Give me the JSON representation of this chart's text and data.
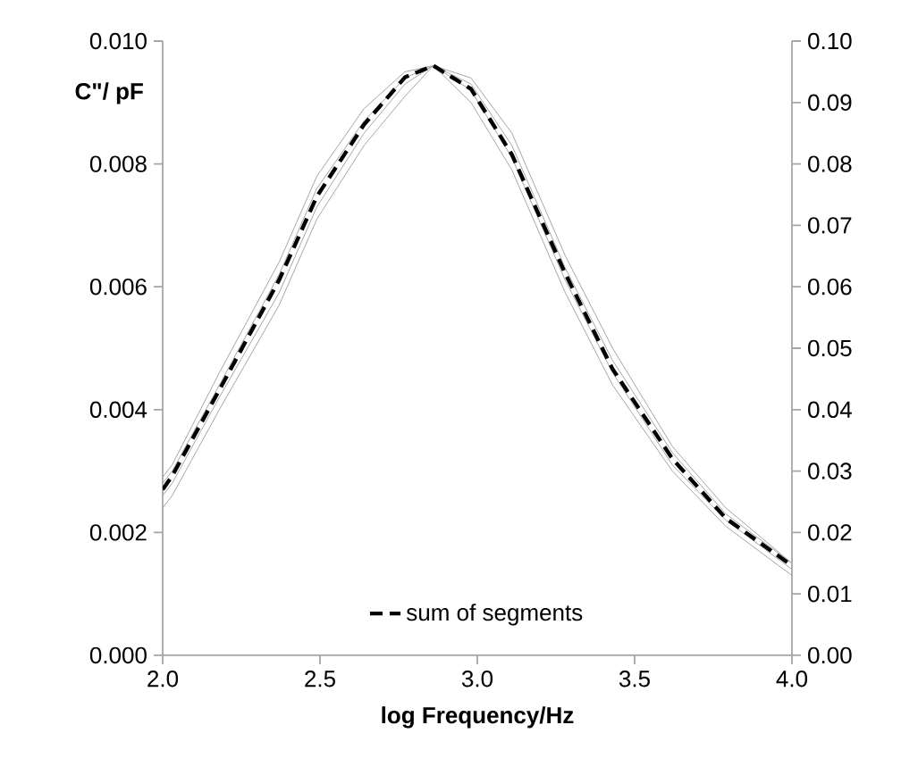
{
  "chart_data": {
    "type": "line",
    "xlabel": "log Frequency/Hz",
    "ylabel": "C\"/ pF",
    "x": [
      2.0,
      2.03,
      2.18,
      2.37,
      2.49,
      2.64,
      2.77,
      2.86,
      2.98,
      3.11,
      3.28,
      3.43,
      3.62,
      3.79,
      4.0
    ],
    "series": [
      {
        "color": "#a6a6a6",
        "values": [
          0.0029,
          0.0031,
          0.0046,
          0.0064,
          0.0078,
          0.0089,
          0.0095,
          0.0096,
          0.009,
          0.0079,
          0.0059,
          0.0044,
          0.003,
          0.0021,
          0.0013
        ]
      },
      {
        "color": "#a6a6a6",
        "values": [
          0.0028,
          0.003,
          0.0044,
          0.0062,
          0.0076,
          0.0087,
          0.0094,
          0.0096,
          0.0092,
          0.0081,
          0.0061,
          0.0046,
          0.0031,
          0.0022,
          0.0014
        ]
      },
      {
        "color": "#a6a6a6",
        "values": [
          0.0026,
          0.0028,
          0.0042,
          0.0059,
          0.0073,
          0.0085,
          0.0093,
          0.0096,
          0.0093,
          0.0083,
          0.0063,
          0.0048,
          0.0033,
          0.0023,
          0.0015
        ]
      },
      {
        "color": "#a6a6a6",
        "values": [
          0.0024,
          0.0026,
          0.004,
          0.0057,
          0.0071,
          0.0083,
          0.0091,
          0.0096,
          0.0094,
          0.0085,
          0.0065,
          0.005,
          0.0034,
          0.0024,
          0.0015
        ]
      },
      {
        "name": "sum of segments",
        "color": "#000000",
        "line_style": "dashed",
        "axis": "y2",
        "values": [
          0.027,
          0.0292,
          0.0432,
          0.0611,
          0.0747,
          0.0864,
          0.0941,
          0.096,
          0.0922,
          0.0815,
          0.0621,
          0.0466,
          0.032,
          0.0223,
          0.0146
        ]
      }
    ],
    "xlim": [
      2.0,
      4.0
    ],
    "xticks": [
      {
        "value": 2.0,
        "label": "2.0"
      },
      {
        "value": 2.5,
        "label": "2.5"
      },
      {
        "value": 3.0,
        "label": "3.0"
      },
      {
        "value": 3.5,
        "label": "3.5"
      },
      {
        "value": 4.0,
        "label": "4.0"
      }
    ],
    "ylim": [
      0,
      0.01
    ],
    "yticks": [
      {
        "value": 0,
        "label": "0.000"
      },
      {
        "value": 0.002,
        "label": "0.002"
      },
      {
        "value": 0.004,
        "label": "0.004"
      },
      {
        "value": 0.006,
        "label": "0.006"
      },
      {
        "value": 0.008,
        "label": "0.008"
      },
      {
        "value": 0.01,
        "label": "0.010"
      }
    ],
    "y2lim": [
      0,
      0.1
    ],
    "y2ticks": [
      {
        "value": 0,
        "label": "0.00"
      },
      {
        "value": 0.01,
        "label": "0.01"
      },
      {
        "value": 0.02,
        "label": "0.02"
      },
      {
        "value": 0.03,
        "label": "0.03"
      },
      {
        "value": 0.04,
        "label": "0.04"
      },
      {
        "value": 0.05,
        "label": "0.05"
      },
      {
        "value": 0.06,
        "label": "0.06"
      },
      {
        "value": 0.07,
        "label": "0.07"
      },
      {
        "value": 0.08,
        "label": "0.08"
      },
      {
        "value": 0.09,
        "label": "0.09"
      },
      {
        "value": 0.1,
        "label": "0.10"
      }
    ],
    "legend": "bottom",
    "marker": "none"
  }
}
